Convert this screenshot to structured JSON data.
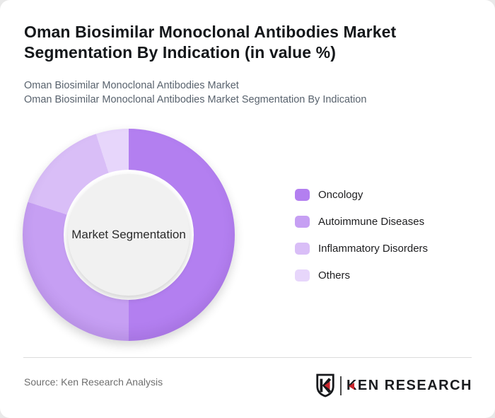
{
  "header": {
    "title": "Oman Biosimilar Monoclonal Antibodies Market Segmentation By Indication (in value %)",
    "subtitle1": "Oman Biosimilar Monoclonal Antibodies Market",
    "subtitle2": "Oman Biosimilar Monoclonal Antibodies Market Segmentation By Indication"
  },
  "chart_data": {
    "type": "pie",
    "variant": "donut",
    "title": "Oman Biosimilar Monoclonal Antibodies Market Segmentation By Indication (in value %)",
    "center_label": "Market Segmentation",
    "categories": [
      "Oncology",
      "Autoimmune Diseases",
      "Inflammatory Disorders",
      "Others"
    ],
    "values": [
      50,
      30,
      15,
      5
    ],
    "unit": "value %",
    "colors": [
      "#b37ff0",
      "#c69ff3",
      "#d9bef7",
      "#e7d6fb"
    ],
    "start_angle_deg": 0,
    "direction": "clockwise",
    "legend_position": "right",
    "center_bg": "#f1f1f1"
  },
  "footer": {
    "source": "Source: Ken Research Analysis",
    "brand_wordmark_first_letter": "K",
    "brand_wordmark_rest": "EN RESEARCH",
    "brand": "KEN RESEARCH",
    "brand_red": "#c9252c"
  }
}
